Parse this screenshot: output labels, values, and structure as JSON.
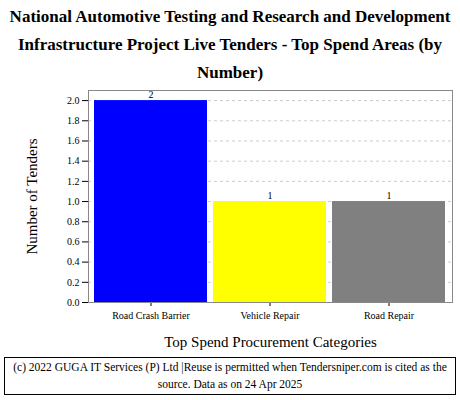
{
  "chart_data": {
    "type": "bar",
    "title": "National Automotive Testing and Research and Development Infrastructure Project Live Tenders - Top Spend Areas (by Number)",
    "categories": [
      "Road Crash Barrier",
      "Vehicle Repair",
      "Road Repair"
    ],
    "values": [
      2,
      1,
      1
    ],
    "colors": [
      "#0000ff",
      "#ffff00",
      "#808080"
    ],
    "xlabel": "Top Spend Procurement Categories",
    "ylabel": "Number of Tenders",
    "ylim": [
      0,
      2.1
    ],
    "yticks": [
      {
        "value": 0,
        "label": "0.0"
      },
      0.2,
      0.4,
      0.6,
      0.8,
      {
        "value": 1,
        "label": "1.0"
      },
      1.2,
      1.4,
      1.6,
      1.8,
      {
        "value": 2,
        "label": "2.0"
      }
    ],
    "grid": true,
    "data_labels": true,
    "caption": "(c) 2022 GUGA IT Services (P) Ltd |Reuse is permitted when Tendersniper.com is cited as the source. Data as on 24 Apr 2025"
  }
}
